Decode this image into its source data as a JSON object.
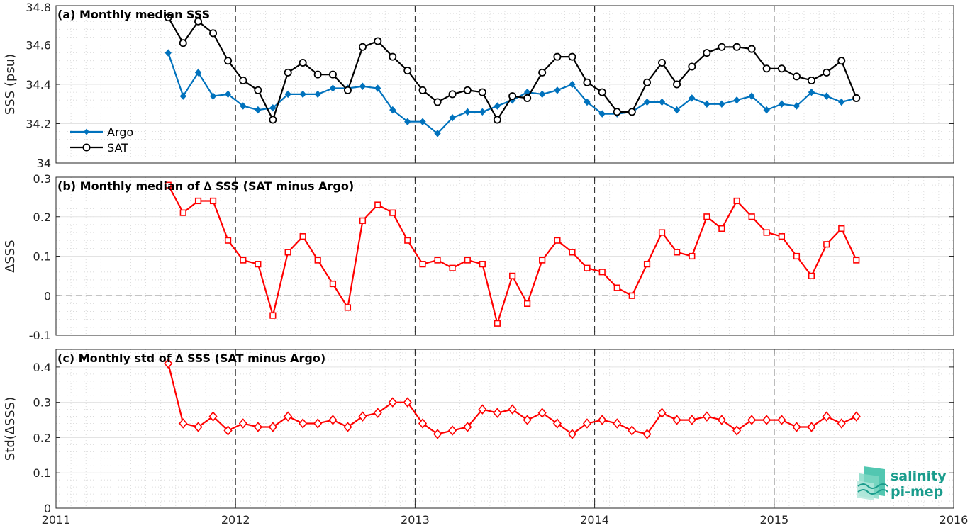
{
  "chart_data": [
    {
      "type": "line",
      "panel": "a",
      "title": "(a) Monthly median SSS",
      "ylabel": "SSS (psu)",
      "xlim": [
        2011,
        2016
      ],
      "ylim": [
        34,
        34.8
      ],
      "yticks": [
        34,
        34.2,
        34.4,
        34.6,
        34.8
      ],
      "ytick_labels": [
        "34",
        "34.2",
        "34.4",
        "34.6",
        "34.8"
      ],
      "x": [
        2011.625,
        2011.708,
        2011.792,
        2011.875,
        2011.958,
        2012.042,
        2012.125,
        2012.208,
        2012.292,
        2012.375,
        2012.458,
        2012.542,
        2012.625,
        2012.708,
        2012.792,
        2012.875,
        2012.958,
        2013.042,
        2013.125,
        2013.208,
        2013.292,
        2013.375,
        2013.458,
        2013.542,
        2013.625,
        2013.708,
        2013.792,
        2013.875,
        2013.958,
        2014.042,
        2014.125,
        2014.208,
        2014.292,
        2014.375,
        2014.458,
        2014.542,
        2014.625,
        2014.708,
        2014.792,
        2014.875,
        2014.958,
        2015.042,
        2015.125,
        2015.208,
        2015.292,
        2015.375,
        2015.458
      ],
      "series": [
        {
          "name": "Argo",
          "color": "#0072bd",
          "marker": "diamond-filled",
          "values": [
            34.56,
            34.34,
            34.46,
            34.34,
            34.35,
            34.29,
            34.27,
            34.28,
            34.35,
            34.35,
            34.35,
            34.38,
            34.38,
            34.39,
            34.38,
            34.27,
            34.21,
            34.21,
            34.15,
            34.23,
            34.26,
            34.26,
            34.29,
            34.32,
            34.36,
            34.35,
            34.37,
            34.4,
            34.31,
            34.25,
            34.25,
            34.26,
            34.31,
            34.31,
            34.27,
            34.33,
            34.3,
            34.3,
            34.32,
            34.34,
            34.27,
            34.3,
            34.29,
            34.36,
            34.34,
            34.31,
            34.33
          ]
        },
        {
          "name": "SAT",
          "color": "#000000",
          "marker": "circle-open",
          "values": [
            34.74,
            34.61,
            34.72,
            34.66,
            34.52,
            34.42,
            34.37,
            34.22,
            34.46,
            34.51,
            34.45,
            34.45,
            34.37,
            34.59,
            34.62,
            34.54,
            34.47,
            34.37,
            34.31,
            34.35,
            34.37,
            34.36,
            34.22,
            34.34,
            34.33,
            34.46,
            34.54,
            34.54,
            34.41,
            34.36,
            34.26,
            34.26,
            34.41,
            34.51,
            34.4,
            34.49,
            34.56,
            34.59,
            34.59,
            34.58,
            34.48,
            34.48,
            34.44,
            34.42,
            34.46,
            34.52,
            34.33
          ]
        }
      ],
      "legend": {
        "placement": "bottom-left",
        "entries": [
          "Argo",
          "SAT"
        ]
      }
    },
    {
      "type": "line",
      "panel": "b",
      "title": "(b) Monthly median of ∆ SSS (SAT minus Argo)",
      "ylabel": "∆SSS",
      "xlim": [
        2011,
        2016
      ],
      "ylim": [
        -0.1,
        0.3
      ],
      "yticks": [
        -0.1,
        0,
        0.1,
        0.2,
        0.3
      ],
      "ytick_labels": [
        "-0.1",
        "0",
        "0.1",
        "0.2",
        "0.3"
      ],
      "zero_line": "dashed",
      "x": [
        2011.625,
        2011.708,
        2011.792,
        2011.875,
        2011.958,
        2012.042,
        2012.125,
        2012.208,
        2012.292,
        2012.375,
        2012.458,
        2012.542,
        2012.625,
        2012.708,
        2012.792,
        2012.875,
        2012.958,
        2013.042,
        2013.125,
        2013.208,
        2013.292,
        2013.375,
        2013.458,
        2013.542,
        2013.625,
        2013.708,
        2013.792,
        2013.875,
        2013.958,
        2014.042,
        2014.125,
        2014.208,
        2014.292,
        2014.375,
        2014.458,
        2014.542,
        2014.625,
        2014.708,
        2014.792,
        2014.875,
        2014.958,
        2015.042,
        2015.125,
        2015.208,
        2015.292,
        2015.375,
        2015.458
      ],
      "series": [
        {
          "color": "#ff0000",
          "marker": "square-open",
          "values": [
            0.28,
            0.21,
            0.24,
            0.24,
            0.14,
            0.09,
            0.08,
            -0.05,
            0.11,
            0.15,
            0.09,
            0.03,
            -0.03,
            0.19,
            0.23,
            0.21,
            0.14,
            0.08,
            0.09,
            0.07,
            0.09,
            0.08,
            -0.07,
            0.05,
            -0.02,
            0.09,
            0.14,
            0.11,
            0.07,
            0.06,
            0.02,
            0.0,
            0.08,
            0.16,
            0.11,
            0.1,
            0.2,
            0.17,
            0.24,
            0.2,
            0.16,
            0.15,
            0.1,
            0.05,
            0.13,
            0.17,
            0.09
          ]
        }
      ]
    },
    {
      "type": "line",
      "panel": "c",
      "title": "(c) Monthly std of ∆ SSS (SAT minus Argo)",
      "ylabel": "Std(∆SSS)",
      "xlim": [
        2011,
        2016
      ],
      "ylim": [
        0,
        0.45
      ],
      "yticks": [
        0,
        0.1,
        0.2,
        0.3,
        0.4
      ],
      "ytick_labels": [
        "0",
        "0.1",
        "0.2",
        "0.3",
        "0.4"
      ],
      "x": [
        2011.625,
        2011.708,
        2011.792,
        2011.875,
        2011.958,
        2012.042,
        2012.125,
        2012.208,
        2012.292,
        2012.375,
        2012.458,
        2012.542,
        2012.625,
        2012.708,
        2012.792,
        2012.875,
        2012.958,
        2013.042,
        2013.125,
        2013.208,
        2013.292,
        2013.375,
        2013.458,
        2013.542,
        2013.625,
        2013.708,
        2013.792,
        2013.875,
        2013.958,
        2014.042,
        2014.125,
        2014.208,
        2014.292,
        2014.375,
        2014.458,
        2014.542,
        2014.625,
        2014.708,
        2014.792,
        2014.875,
        2014.958,
        2015.042,
        2015.125,
        2015.208,
        2015.292,
        2015.375,
        2015.458
      ],
      "series": [
        {
          "color": "#ff0000",
          "marker": "diamond-open",
          "values": [
            0.41,
            0.24,
            0.23,
            0.26,
            0.22,
            0.24,
            0.23,
            0.23,
            0.26,
            0.24,
            0.24,
            0.25,
            0.23,
            0.26,
            0.27,
            0.3,
            0.3,
            0.24,
            0.21,
            0.22,
            0.23,
            0.28,
            0.27,
            0.28,
            0.25,
            0.27,
            0.24,
            0.21,
            0.24,
            0.25,
            0.24,
            0.22,
            0.21,
            0.27,
            0.25,
            0.25,
            0.26,
            0.25,
            0.22,
            0.25,
            0.25,
            0.25,
            0.23,
            0.23,
            0.26,
            0.24,
            0.26
          ]
        }
      ]
    }
  ],
  "xaxis": {
    "ticks": [
      2011,
      2012,
      2013,
      2014,
      2015,
      2016
    ],
    "tick_labels": [
      "2011",
      "2012",
      "2013",
      "2014",
      "2015",
      "2016"
    ],
    "year_lines": "dashed",
    "minor_grid": "dotted"
  },
  "logo": {
    "line1": "salinity",
    "line2": "pi-mep",
    "color": "#1a9c8c"
  }
}
